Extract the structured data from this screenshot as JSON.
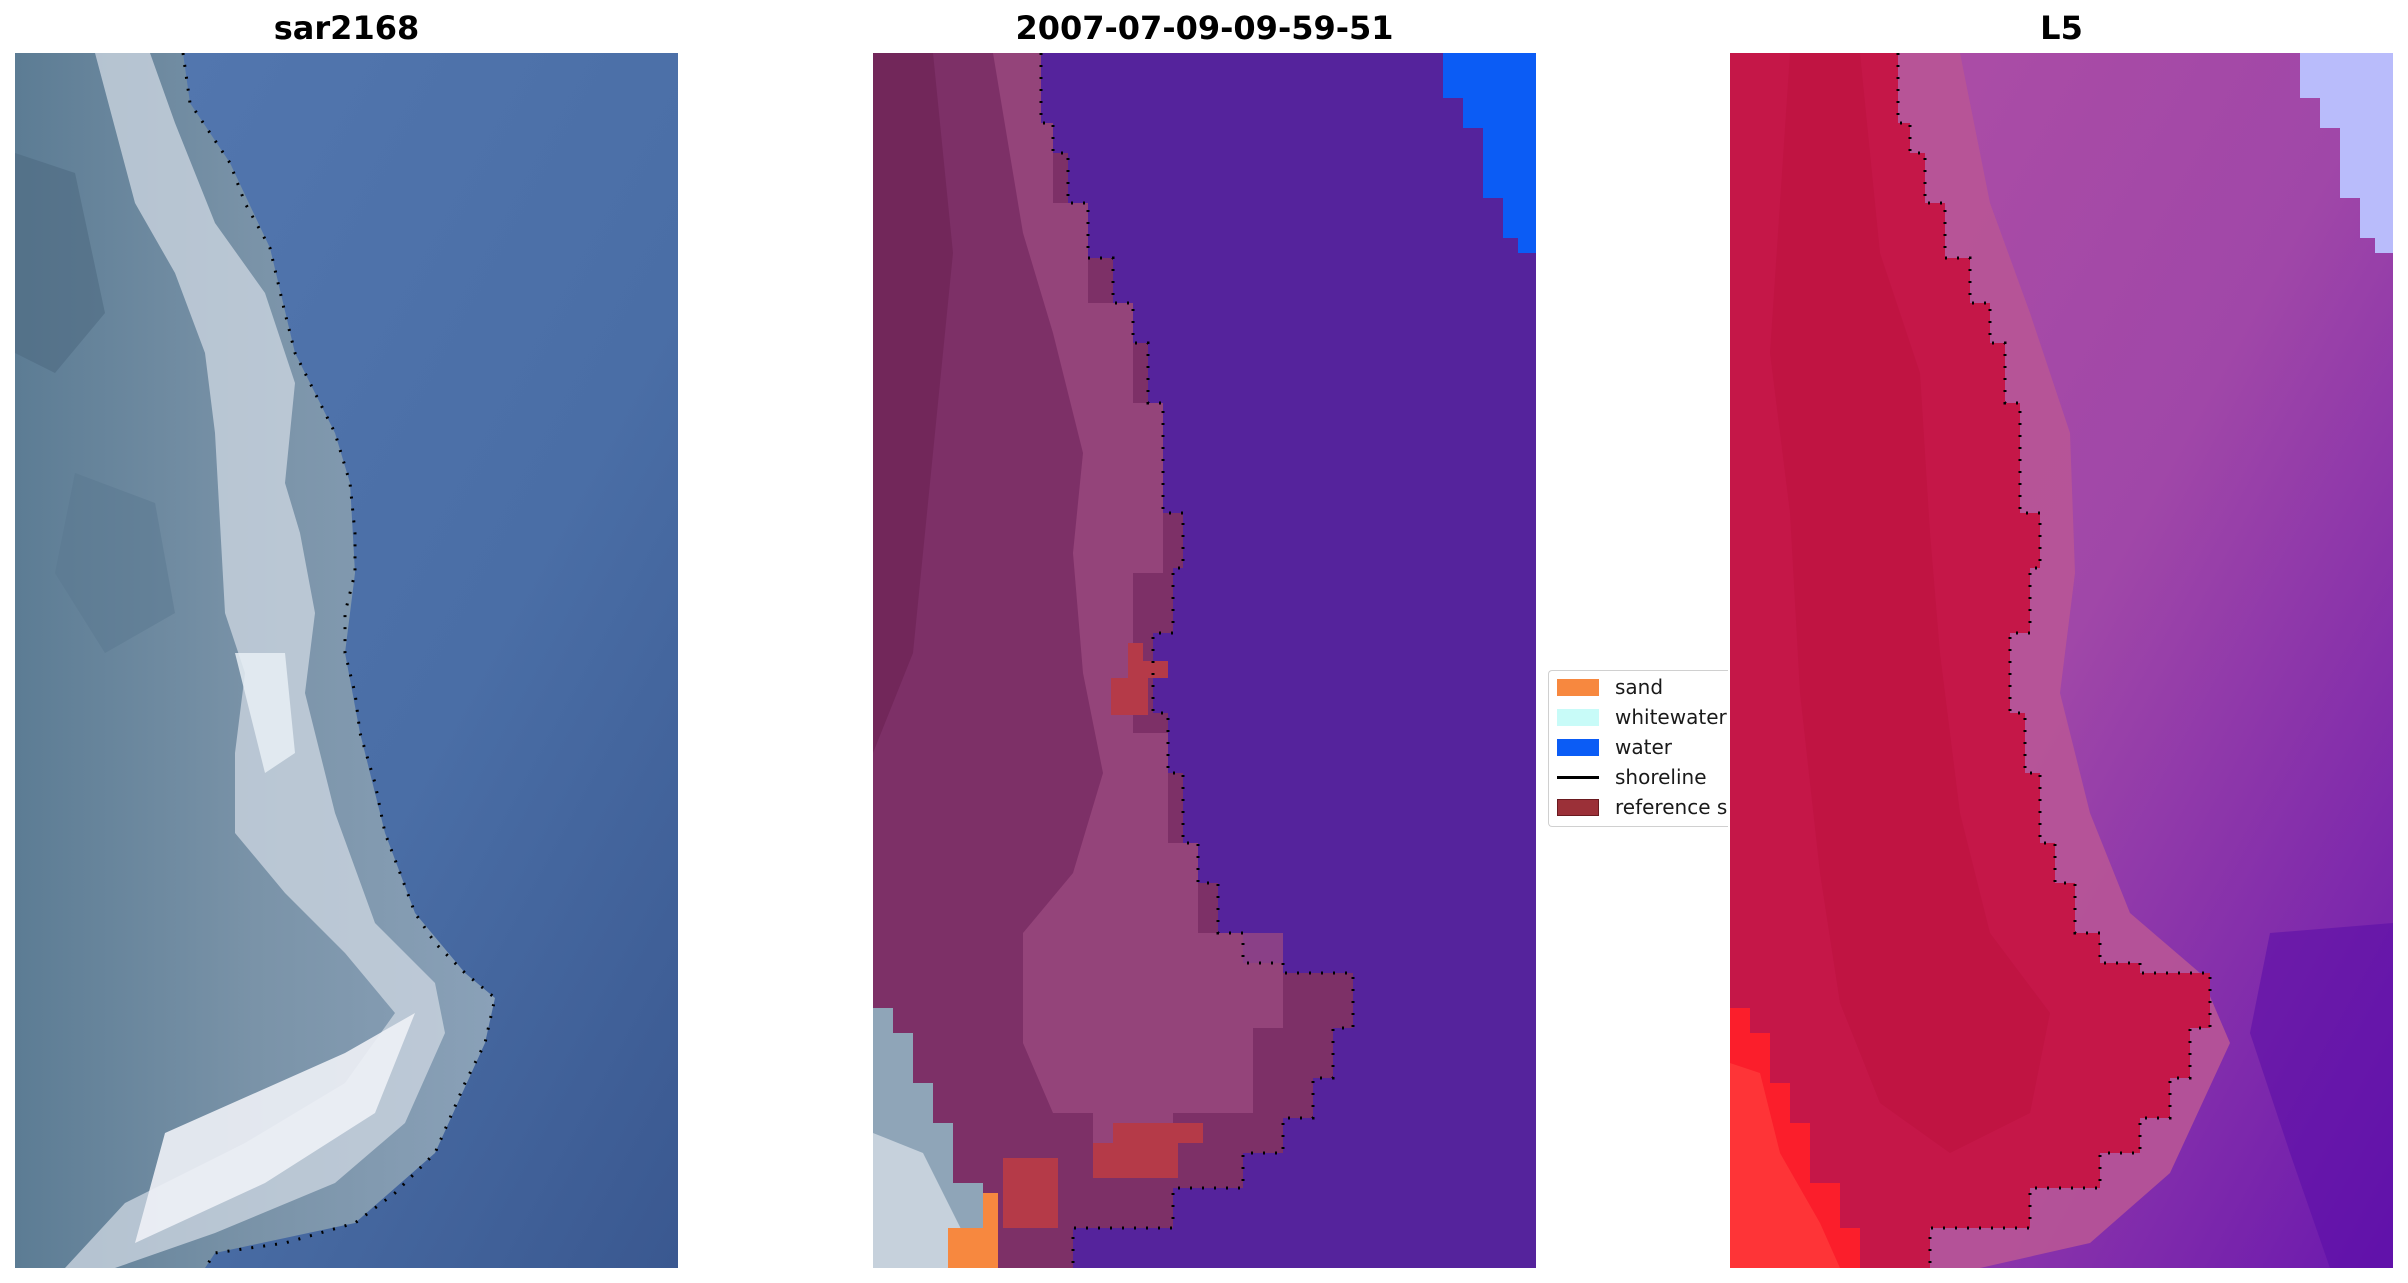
{
  "panels": [
    {
      "title": "sar2168",
      "kind": "rgb-composite"
    },
    {
      "title": "2007-07-09-09-59-51",
      "kind": "classification"
    },
    {
      "title": "L5",
      "kind": "mndwi"
    }
  ],
  "legend": {
    "items": [
      {
        "label": "sand",
        "type": "patch",
        "color": "#f7883f"
      },
      {
        "label": "whitewater",
        "type": "patch",
        "color": "#c8fbf8"
      },
      {
        "label": "water",
        "type": "patch",
        "color": "#0b5cf5"
      },
      {
        "label": "shoreline",
        "type": "line",
        "color": "#000000"
      },
      {
        "label": "reference s",
        "type": "patch",
        "color": "#9b3038"
      }
    ]
  },
  "colors": {
    "water_rgb": "#4c6ea7",
    "land_rgb": "#6e8aa3",
    "surf_rgb": "#d7dfe9",
    "class_water": "#55239c",
    "class_land": "#7d3067",
    "class_land_light": "#9c4b80",
    "class_water_blue": "#0b5cf5",
    "mndwi_land": "#c51748",
    "mndwi_water": "#a84fa7",
    "mndwi_deep": "#5a0da8",
    "mndwi_light": "#b9bcfb",
    "mndwi_red": "#fb1e2b"
  }
}
